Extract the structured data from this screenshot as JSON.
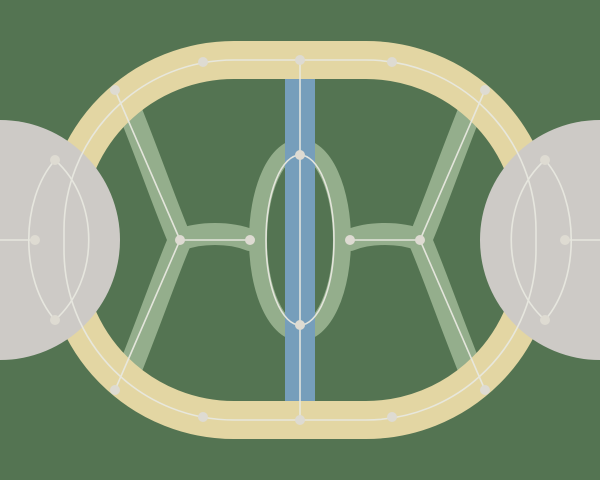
{
  "map": {
    "colors": {
      "background": "#547452",
      "hub": "#cdcac6",
      "ring_track": "#e3d6a3",
      "river": "#769ebb",
      "connector": "#94ae8c",
      "path_line": "#e8e8e0",
      "node": "#dedbd2"
    },
    "elements": [
      "left-hub",
      "right-hub",
      "outer-ring-track",
      "center-river",
      "left-connector",
      "right-connector",
      "center-ellipse-track"
    ]
  }
}
